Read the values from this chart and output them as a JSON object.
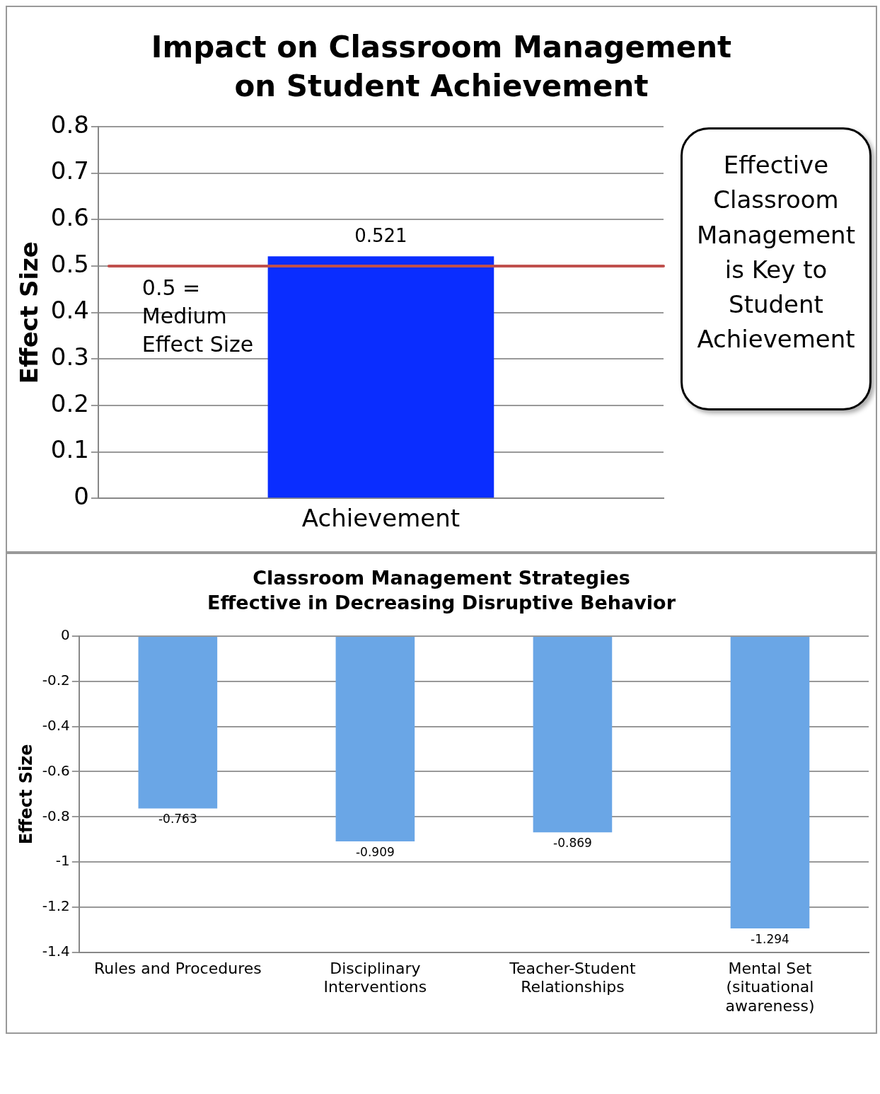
{
  "chart_data": [
    {
      "type": "bar",
      "title": "Impact on Classroom Management on Student Achievement",
      "ylabel": "Effect Size",
      "categories": [
        "Achievement"
      ],
      "values": [
        0.521
      ],
      "color": "#0a2dff",
      "ylim": [
        0,
        0.8
      ],
      "yticks": [
        0,
        0.1,
        0.2,
        0.3,
        0.4,
        0.5,
        0.6,
        0.7,
        0.8
      ],
      "grid": "y",
      "data_labels": true,
      "legend": false,
      "ref_lines": [
        {
          "axis": "y",
          "value": 0.5,
          "label": "0.5 = Medium Effect Size",
          "color": "#c0504d"
        }
      ],
      "annotations": [
        "Effective Classroom Management is Key to Student Achievement"
      ]
    },
    {
      "type": "bar",
      "title": "Classroom Management Strategies Effective in Decreasing Disruptive Behavior",
      "ylabel": "Effect Size",
      "categories": [
        "Rules and Procedures",
        "Disciplinary Interventions",
        "Teacher-Student Relationships",
        "Mental Set (situational awareness)"
      ],
      "values": [
        -0.763,
        -0.909,
        -0.869,
        -1.294
      ],
      "color": "#6aa6e6",
      "ylim": [
        -1.4,
        0
      ],
      "yticks": [
        0,
        -0.2,
        -0.4,
        -0.6,
        -0.8,
        -1,
        -1.2,
        -1.4
      ],
      "grid": "y",
      "data_labels": true,
      "legend": false
    }
  ]
}
